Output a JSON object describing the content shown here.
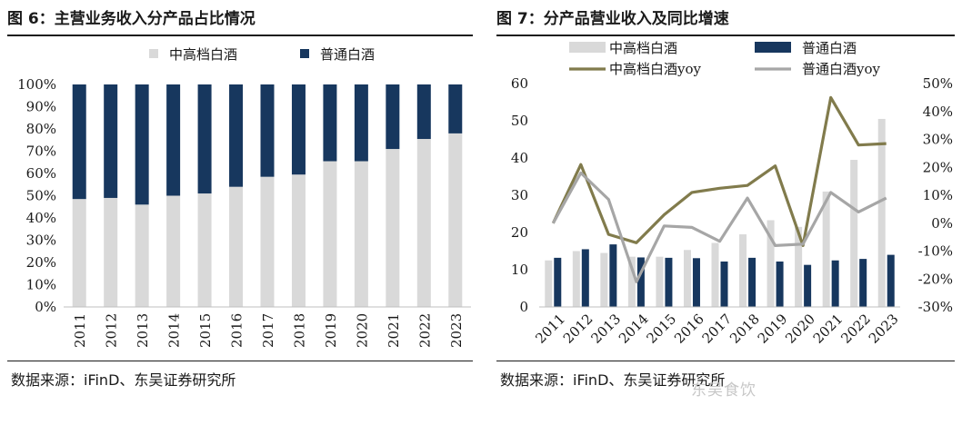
{
  "left_panel": {
    "title": "图 6：主营业务收入分产品占比情况",
    "source": "数据来源：iFinD、东吴证券研究所"
  },
  "right_panel": {
    "title": "图 7：分产品营业收入及同比增速",
    "source": "数据来源：iFinD、东吴证券研究所"
  },
  "watermark": "东吴食饮",
  "colors": {
    "light": "#d9d9d9",
    "dark": "#17375e",
    "olive": "#817b4c",
    "gray": "#a6a6a6"
  },
  "chart_data": [
    {
      "type": "bar",
      "stacked": true,
      "title": "主营业务收入分产品占比情况",
      "categories": [
        "2011",
        "2012",
        "2013",
        "2014",
        "2015",
        "2016",
        "2017",
        "2018",
        "2019",
        "2020",
        "2021",
        "2022",
        "2023"
      ],
      "series": [
        {
          "name": "中高档白酒",
          "values": [
            48.5,
            49,
            46,
            50,
            51,
            54,
            58.5,
            59.5,
            65.5,
            65.5,
            71,
            75.5,
            78
          ]
        },
        {
          "name": "普通白酒",
          "values": [
            51.5,
            51,
            54,
            50,
            49,
            46,
            41.5,
            40.5,
            34.5,
            34.5,
            29,
            24.5,
            22
          ]
        }
      ],
      "ylim": [
        0,
        100
      ],
      "yticks": [
        "0%",
        "10%",
        "20%",
        "30%",
        "40%",
        "50%",
        "60%",
        "70%",
        "80%",
        "90%",
        "100%"
      ],
      "legend_position": "top"
    },
    {
      "type": "bar+line",
      "title": "分产品营业收入及同比增速",
      "categories": [
        "2011",
        "2012",
        "2013",
        "2014",
        "2015",
        "2016",
        "2017",
        "2018",
        "2019",
        "2020",
        "2021",
        "2022",
        "2023"
      ],
      "bar_series": [
        {
          "name": "中高档白酒",
          "values": [
            12.5,
            15,
            14.5,
            13.5,
            13.5,
            15.3,
            17.2,
            19.5,
            23.3,
            21.5,
            31,
            39.5,
            50.5
          ]
        },
        {
          "name": "普通白酒",
          "values": [
            13.2,
            15.5,
            16.8,
            13.3,
            13.2,
            13.1,
            12.2,
            13.2,
            12.2,
            11.3,
            12.5,
            12.9,
            14
          ]
        }
      ],
      "line_series": [
        {
          "name": "中高档白酒yoy",
          "values": [
            0,
            21,
            -4,
            -7,
            3,
            11,
            12.5,
            13.5,
            20.5,
            -8,
            45,
            28,
            28.5
          ]
        },
        {
          "name": "普通白酒yoy",
          "values": [
            0,
            18,
            8.5,
            -21,
            -1,
            -1.5,
            -6.5,
            9,
            -8,
            -7.5,
            11,
            4,
            9
          ]
        }
      ],
      "y_left": {
        "lim": [
          0,
          60
        ],
        "ticks": [
          "0",
          "10",
          "20",
          "30",
          "40",
          "50",
          "60"
        ]
      },
      "y_right": {
        "lim": [
          -30,
          50
        ],
        "ticks": [
          "-30%",
          "-20%",
          "-10%",
          "0%",
          "10%",
          "20%",
          "30%",
          "40%",
          "50%"
        ]
      },
      "legend_position": "top"
    }
  ]
}
